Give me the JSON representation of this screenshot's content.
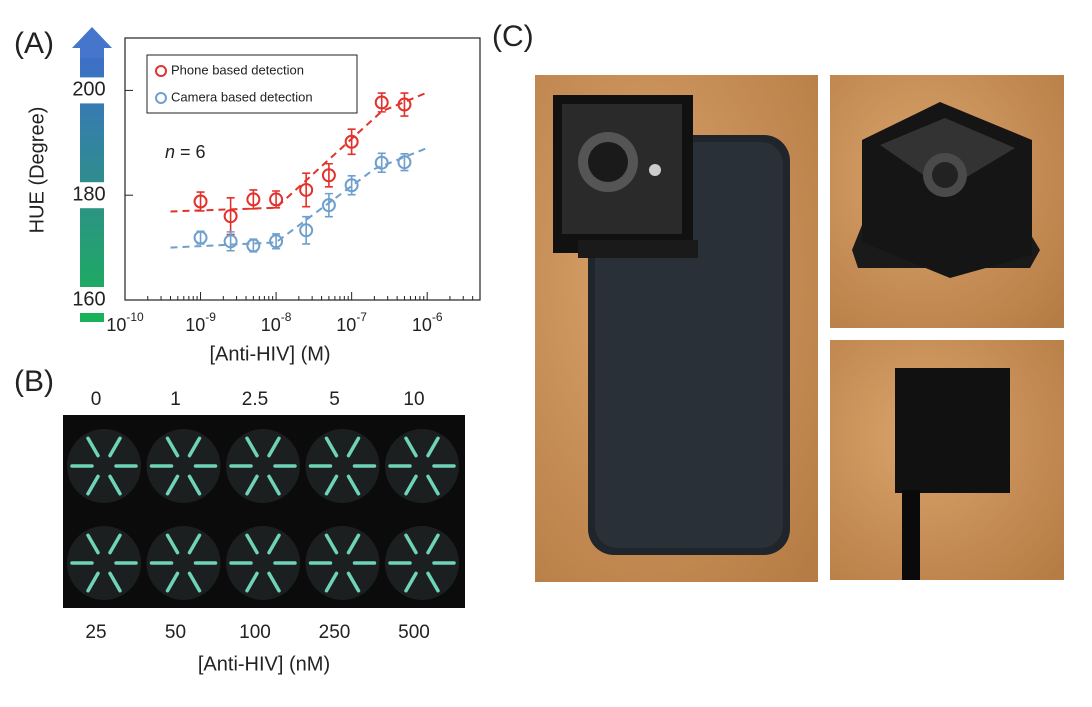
{
  "panel_labels": {
    "a": "(A)",
    "b": "(B)",
    "c": "(C)"
  },
  "chart_data": {
    "type": "scatter",
    "xscale": "log",
    "ylabel": "HUE (Degree)",
    "xlabel": "[Anti-HIV] (M)",
    "annotation": {
      "italic": "n",
      "text": " = 6"
    },
    "xlim": [
      1e-10,
      5e-06
    ],
    "ylim": [
      160,
      210
    ],
    "xticks": [
      {
        "value": 1e-10,
        "label": "10",
        "exponent": "-10"
      },
      {
        "value": 1e-09,
        "label": "10",
        "exponent": "-9"
      },
      {
        "value": 1e-08,
        "label": "10",
        "exponent": "-8"
      },
      {
        "value": 1e-07,
        "label": "10",
        "exponent": "-7"
      },
      {
        "value": 1e-06,
        "label": "10",
        "exponent": "-6"
      }
    ],
    "minor_xticks": [
      2e-10,
      3e-10,
      4e-10,
      5e-10,
      6e-10,
      7e-10,
      8e-10,
      9e-10,
      2e-09,
      3e-09,
      4e-09,
      5e-09,
      6e-09,
      7e-09,
      8e-09,
      9e-09,
      2e-08,
      3e-08,
      4e-08,
      5e-08,
      6e-08,
      7e-08,
      8e-08,
      9e-08,
      2e-07,
      3e-07,
      4e-07,
      5e-07,
      6e-07,
      7e-07,
      8e-07,
      9e-07,
      2e-06,
      3e-06,
      4e-06,
      5e-06
    ],
    "yticks": [
      160,
      180,
      200
    ],
    "grid": false,
    "legend": "top-left",
    "x": [
      1e-09,
      2.5e-09,
      5e-09,
      1e-08,
      2.5e-08,
      5e-08,
      1e-07,
      2.5e-07,
      5e-07
    ],
    "series": [
      {
        "name": "Phone based detection",
        "color": "#e3312b",
        "values": [
          178.8,
          176.0,
          179.2,
          179.2,
          181.0,
          183.8,
          190.2,
          197.7,
          197.3
        ],
        "errors": [
          1.8,
          3.5,
          1.8,
          1.6,
          3.2,
          2.2,
          2.4,
          1.8,
          2.2
        ],
        "fit": {
          "x": [
            4e-10,
            1e-08,
            2.5e-07,
            1e-06
          ],
          "y": [
            176.9,
            177.6,
            196.0,
            199.6
          ]
        }
      },
      {
        "name": "Camera based detection",
        "color": "#6e9fcd",
        "values": [
          171.9,
          171.2,
          170.4,
          171.2,
          173.3,
          178.1,
          181.9,
          186.2,
          186.3
        ],
        "errors": [
          1.2,
          1.8,
          1.2,
          1.4,
          2.6,
          2.2,
          1.8,
          1.8,
          1.6
        ],
        "fit": {
          "x": [
            4e-10,
            1e-08,
            2e-07,
            1e-06
          ],
          "y": [
            170.0,
            171.0,
            185.0,
            189.0
          ]
        }
      }
    ]
  },
  "panel_b": {
    "top_labels": [
      "0",
      "1",
      "2.5",
      "5",
      "10"
    ],
    "bottom_labels": [
      "25",
      "50",
      "100",
      "250",
      "500"
    ],
    "xlabel": "[Anti-HIV] (nM)"
  }
}
